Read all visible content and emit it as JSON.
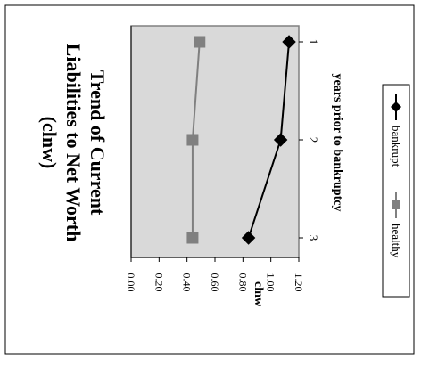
{
  "chart_data": {
    "type": "line",
    "orientation": "rotated-90-clockwise",
    "title": "Trend of Current Liabilities to Net Worth (clnw)",
    "title_lines": [
      "Trend of Current",
      "Liabilities to Net Worth",
      "(clnw)"
    ],
    "xlabel": "years prior to bankruptcy",
    "ylabel": "clnw",
    "categories": [
      "1",
      "2",
      "3"
    ],
    "ylim": [
      0,
      1.2
    ],
    "y_ticks": [
      "1.20",
      "1.00",
      "0.80",
      "0.60",
      "0.40",
      "0.20",
      "0.00"
    ],
    "grid": false,
    "legend_position": "right",
    "plot_background": "#d9d9d9",
    "series": [
      {
        "name": "bankrupt",
        "values": [
          1.13,
          1.07,
          0.84
        ],
        "color": "#000000",
        "marker": "diamond"
      },
      {
        "name": "healthy",
        "values": [
          0.49,
          0.44,
          0.44
        ],
        "color": "#808080",
        "marker": "square"
      }
    ]
  }
}
